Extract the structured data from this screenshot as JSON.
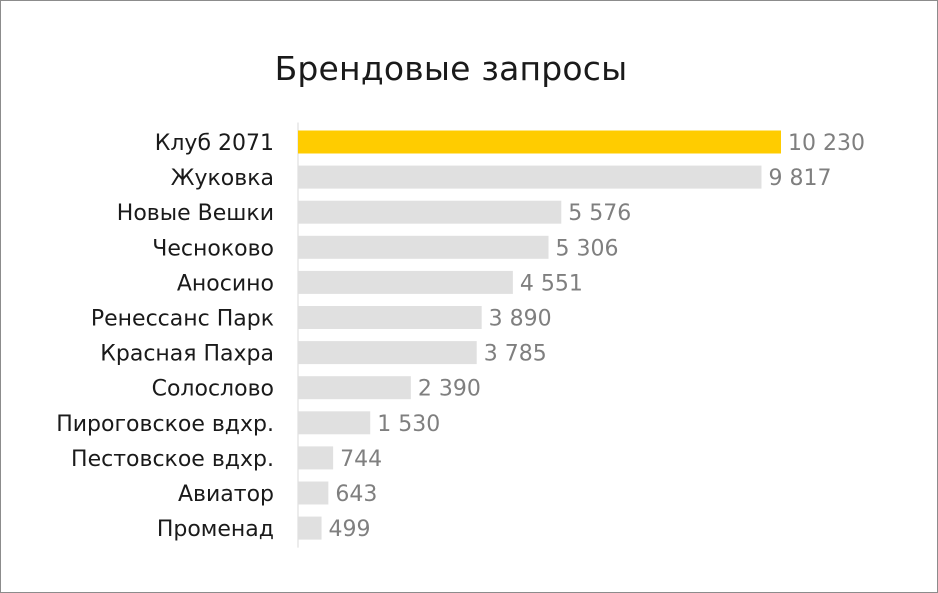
{
  "chart_data": {
    "type": "bar",
    "orientation": "horizontal",
    "title": "Брендовые запросы",
    "categories": [
      "Клуб 2071",
      "Жуковка",
      "Новые Вешки",
      "Чесноково",
      "Аносино",
      "Ренессанс Парк",
      "Красная Пахра",
      "Солослово",
      "Пироговское вдхр.",
      "Пестовское вдхр.",
      "Авиатор",
      "Променад"
    ],
    "values": [
      10230,
      9817,
      5576,
      5306,
      4551,
      3890,
      3785,
      2390,
      1530,
      744,
      643,
      499
    ],
    "value_labels": [
      "10 230",
      "9 817",
      "5 576",
      "5 306",
      "4 551",
      "3 890",
      "3 785",
      "2 390",
      "1 530",
      "744",
      "643",
      "499"
    ],
    "highlight_index": 0,
    "colors": {
      "highlight": "#FFCC00",
      "bar": "#E0E0E0",
      "value_text": "#7F7F7F",
      "category_text": "#1A1A1A",
      "axis": "#D9D9D9"
    },
    "xlim": [
      0,
      10230
    ],
    "grid": false,
    "legend": "none"
  }
}
